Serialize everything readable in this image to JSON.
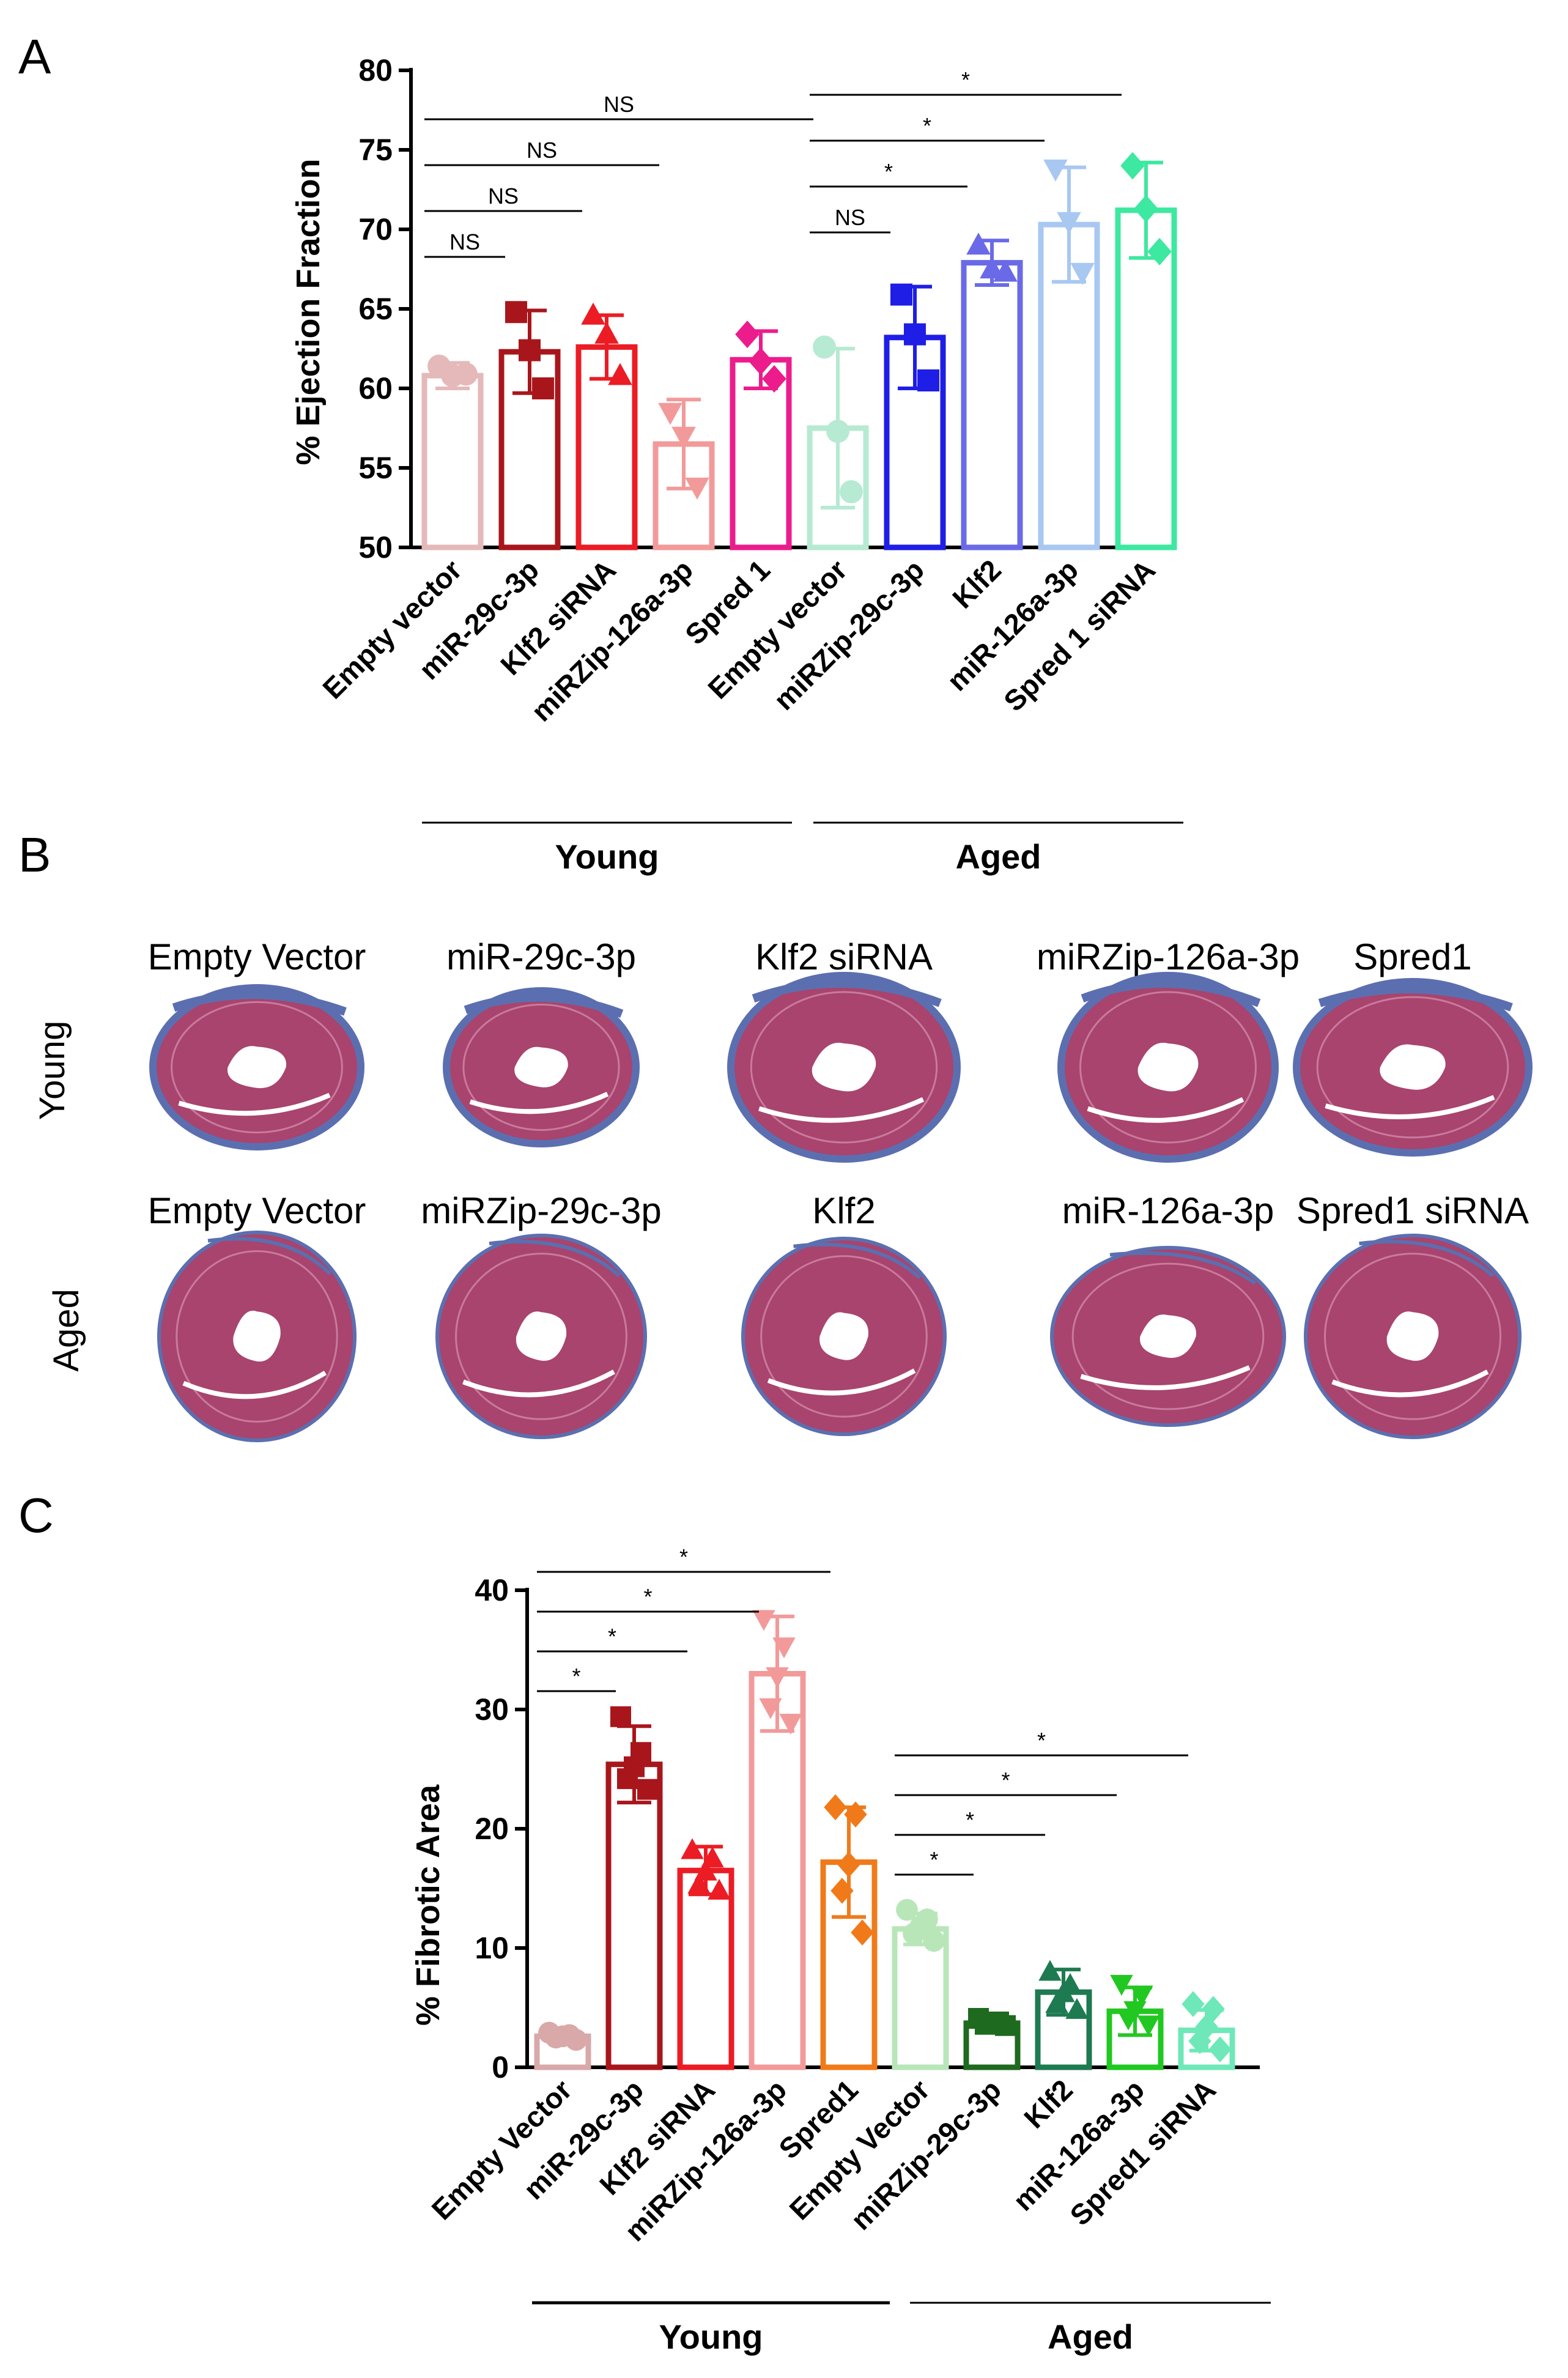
{
  "panel_letters": [
    "A",
    "B",
    "C"
  ],
  "panel_b": {
    "row_labels": [
      "Young",
      "Aged"
    ],
    "young_labels": [
      "Empty Vector",
      "miR-29c-3p",
      "Klf2 siRNA",
      "miRZip-126a-3p",
      "Spred1"
    ],
    "aged_labels": [
      "Empty Vector",
      "miRZip-29c-3p",
      "Klf2",
      "miR-126a-3p",
      "Spred1 siRNA"
    ],
    "stain_colors": {
      "tissue": "#a8446e",
      "fibrosis": "#5b6fb0",
      "light": "#c97a9d"
    }
  },
  "chart_data": [
    {
      "type": "bar",
      "title": "",
      "ylabel": "% Ejection Fraction",
      "xlabel": "",
      "ylim": [
        50,
        80
      ],
      "yticks": [
        50,
        55,
        60,
        65,
        70,
        75,
        80
      ],
      "categories": [
        "Empty vector",
        "miR-29c-3p",
        "Klf2 siRNA",
        "miRZip-126a-3p",
        "Spred 1",
        "Empty vector",
        "miRZip-29c-3p",
        "Klf2",
        "miR-126a-3p",
        "Spred 1 siRNA"
      ],
      "groups": [
        {
          "name": "Young",
          "indices": [
            0,
            1,
            2,
            3,
            4
          ]
        },
        {
          "name": "Aged",
          "indices": [
            5,
            6,
            7,
            8,
            9
          ]
        }
      ],
      "values": [
        60.8,
        62.3,
        62.6,
        56.5,
        61.8,
        57.5,
        63.2,
        67.9,
        70.3,
        71.2
      ],
      "errors": [
        0.8,
        2.6,
        2.0,
        2.8,
        1.8,
        5.0,
        3.2,
        1.4,
        3.6,
        3.0
      ],
      "points": [
        [
          61.4,
          60.8,
          60.9
        ],
        [
          64.8,
          62.4,
          60.0
        ],
        [
          64.6,
          63.4,
          60.8
        ],
        [
          58.5,
          57.0,
          53.8
        ],
        [
          63.4,
          61.7,
          60.6
        ],
        [
          62.6,
          57.3,
          53.5
        ],
        [
          65.9,
          63.4,
          60.5
        ],
        [
          69.0,
          67.5,
          67.3
        ],
        [
          73.8,
          70.5,
          67.3
        ],
        [
          74.0,
          71.3,
          68.6
        ]
      ],
      "markers": [
        "circle",
        "square",
        "triangle",
        "triangle-down",
        "diamond",
        "circle",
        "square",
        "triangle",
        "triangle-down",
        "diamond"
      ],
      "colors": [
        "#e5b9b9",
        "#a8161c",
        "#ec1c24",
        "#f29a9a",
        "#ec1c8c",
        "#b6ead2",
        "#1e1ee6",
        "#6a6ae8",
        "#a8c8f2",
        "#3de8a0"
      ],
      "significance": [
        {
          "from": 0,
          "to": 1,
          "label": "NS",
          "level": 0
        },
        {
          "from": 0,
          "to": 2,
          "label": "NS",
          "level": 1
        },
        {
          "from": 0,
          "to": 3,
          "label": "NS",
          "level": 2
        },
        {
          "from": 0,
          "to": 5,
          "label": "NS",
          "level": 3
        },
        {
          "from": 5,
          "to": 6,
          "label": "NS",
          "level": 0
        },
        {
          "from": 5,
          "to": 7,
          "label": "*",
          "level": 1
        },
        {
          "from": 5,
          "to": 8,
          "label": "*",
          "level": 2
        },
        {
          "from": 5,
          "to": 9,
          "label": "*",
          "level": 3
        }
      ]
    },
    {
      "type": "bar",
      "title": "",
      "ylabel": "% Fibrotic Area",
      "xlabel": "",
      "ylim": [
        0,
        40
      ],
      "yticks": [
        0,
        10,
        20,
        30,
        40
      ],
      "categories": [
        "Empty Vector",
        "miR-29c-3p",
        "Klf2 siRNA",
        "miRZip-126a-3p",
        "Spred1",
        "Empty Vector",
        "miRZip-29c-3p",
        "Klf2",
        "miR-126a-3p",
        "Spred1 siRNA"
      ],
      "groups": [
        {
          "name": "Young",
          "indices": [
            0,
            1,
            2,
            3,
            4
          ]
        },
        {
          "name": "Aged",
          "indices": [
            5,
            6,
            7,
            8,
            9
          ]
        }
      ],
      "values": [
        2.6,
        25.4,
        16.5,
        33.0,
        17.2,
        11.6,
        3.7,
        6.3,
        4.7,
        3.1
      ],
      "errors": [
        0.4,
        3.2,
        2.0,
        4.8,
        4.6,
        1.3,
        0.4,
        1.9,
        2.0,
        1.7
      ],
      "points": [
        [
          2.9,
          2.7,
          2.6,
          2.5,
          2.3
        ],
        [
          29.4,
          26.4,
          25.2,
          24.2,
          23.3
        ],
        [
          18.2,
          17.5,
          16.4,
          15.3,
          14.8
        ],
        [
          37.6,
          35.3,
          32.8,
          30.2,
          28.9
        ],
        [
          21.8,
          21.2,
          17.0,
          14.8,
          11.3
        ],
        [
          13.2,
          12.4,
          11.8,
          11.2,
          10.6
        ],
        [
          4.1,
          3.8,
          3.7,
          3.6,
          3.5
        ],
        [
          8.0,
          6.9,
          6.2,
          5.3,
          4.8
        ],
        [
          7.0,
          6.1,
          4.8,
          4.1,
          3.6
        ],
        [
          5.3,
          4.9,
          3.4,
          2.2,
          1.5
        ]
      ],
      "markers": [
        "circle",
        "square",
        "triangle",
        "triangle-down",
        "diamond",
        "circle",
        "square",
        "triangle",
        "triangle-down",
        "diamond"
      ],
      "colors": [
        "#d9a8a8",
        "#a8161c",
        "#ec1c24",
        "#f29a9a",
        "#f07a1a",
        "#b8e6b8",
        "#1e6a1e",
        "#1e7a50",
        "#22c822",
        "#6ee8b8"
      ],
      "significance": [
        {
          "from": 0,
          "to": 1,
          "label": "*",
          "level": 0
        },
        {
          "from": 0,
          "to": 2,
          "label": "*",
          "level": 1
        },
        {
          "from": 0,
          "to": 3,
          "label": "*",
          "level": 2
        },
        {
          "from": 0,
          "to": 4,
          "label": "*",
          "level": 3
        },
        {
          "from": 5,
          "to": 6,
          "label": "*",
          "level": 0
        },
        {
          "from": 5,
          "to": 7,
          "label": "*",
          "level": 1
        },
        {
          "from": 5,
          "to": 8,
          "label": "*",
          "level": 2
        },
        {
          "from": 5,
          "to": 9,
          "label": "*",
          "level": 3
        }
      ]
    }
  ]
}
